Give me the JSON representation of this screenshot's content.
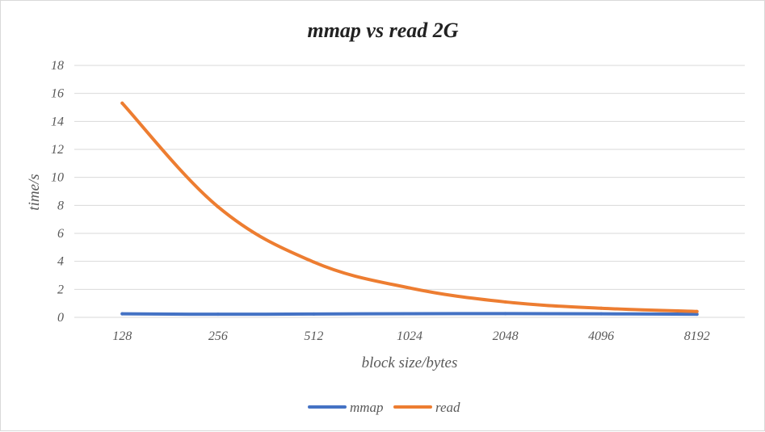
{
  "chart_data": {
    "type": "line",
    "title": "mmap vs read 2G",
    "xlabel": "block size/bytes",
    "ylabel": "time/s",
    "categories": [
      "128",
      "256",
      "512",
      "1024",
      "2048",
      "4096",
      "8192"
    ],
    "ylim": [
      0,
      18
    ],
    "yticks": [
      0,
      2,
      4,
      6,
      8,
      10,
      12,
      14,
      16,
      18
    ],
    "grid": true,
    "legend_position": "bottom",
    "series": [
      {
        "name": "mmap",
        "color": "#4472c4",
        "values": [
          0.25,
          0.22,
          0.24,
          0.26,
          0.27,
          0.25,
          0.22
        ]
      },
      {
        "name": "read",
        "color": "#ed7d31",
        "values": [
          15.3,
          7.9,
          3.95,
          2.1,
          1.1,
          0.65,
          0.42
        ]
      }
    ]
  }
}
